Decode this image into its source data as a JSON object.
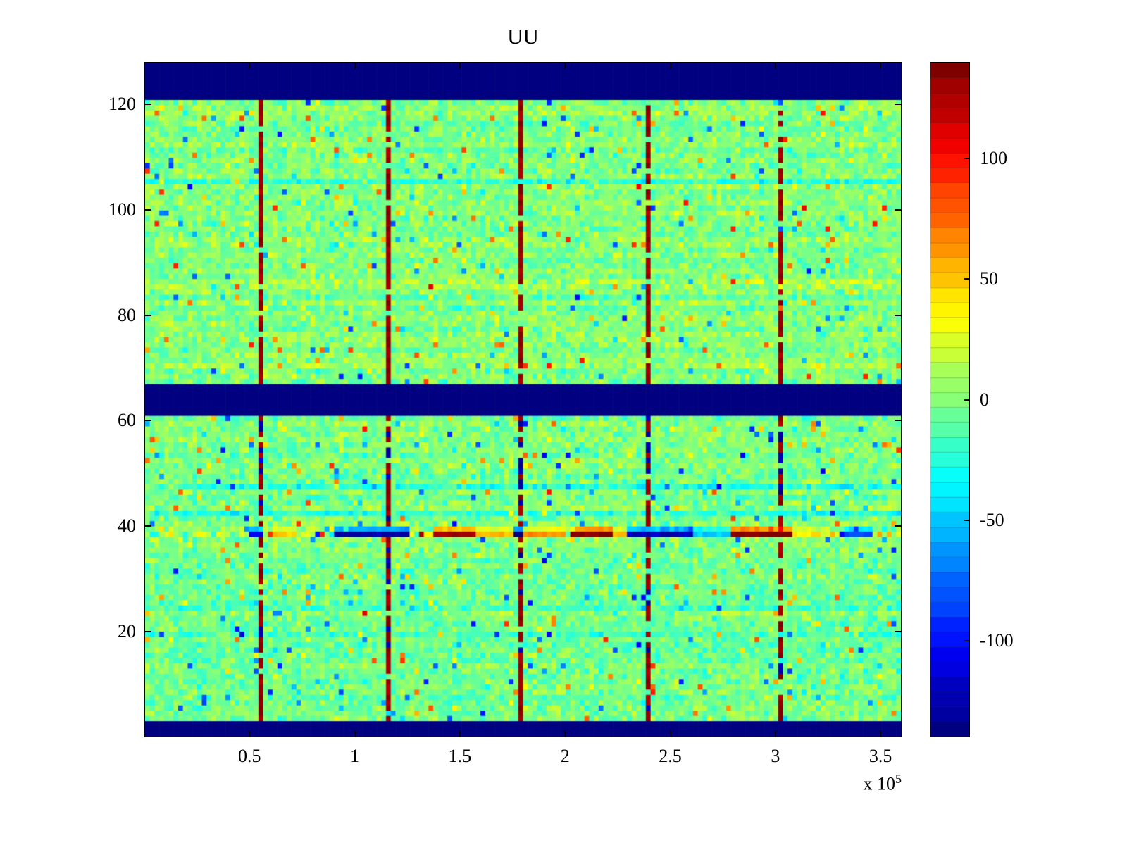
{
  "chart_data": {
    "type": "heatmap",
    "title": "UU",
    "xlabel": "",
    "ylabel": "",
    "x_range": [
      0,
      360000
    ],
    "y_range": [
      0,
      128
    ],
    "x_ticks": [
      50000,
      100000,
      150000,
      200000,
      250000,
      300000,
      350000
    ],
    "x_tick_labels": [
      "0.5",
      "1",
      "1.5",
      "2",
      "2.5",
      "3",
      "3.5"
    ],
    "x_exponent": {
      "base": "x 10",
      "exp": "5"
    },
    "y_ticks": [
      20,
      40,
      60,
      80,
      100,
      120
    ],
    "y_tick_labels": [
      "20",
      "40",
      "60",
      "80",
      "100",
      "120"
    ],
    "grid": {
      "nx": 160,
      "ny": 128,
      "seed": 1337
    },
    "colormap": "jet",
    "value_range": [
      -140,
      140
    ],
    "noise": {
      "base_amp": 26,
      "speckle_prob": 0.06,
      "speckle_amp": 90,
      "row_bias_amp": 6,
      "row_bias_strong_prob": 0.05,
      "row_bias_strong_amp": 22,
      "lower_section_bias": -2
    },
    "blue_bands_rows": [
      [
        0,
        2
      ],
      [
        61,
        66
      ],
      [
        121,
        127
      ]
    ],
    "band_value": -140,
    "streaks": {
      "x_positions": [
        53000,
        115000,
        177000,
        239000,
        301000
      ],
      "upper_section_min_row": 67,
      "upper_prob": 0.85,
      "lower_prob": 0.8,
      "lower_blue_prob_high_rows": 0.6,
      "lower_blue_prob_low_rows": 0.12,
      "blue_zone_start_row": 50,
      "red_value": 124,
      "red_jitter": 16,
      "blue_value": -118,
      "blue_jitter": 20
    },
    "anomaly": {
      "rows": [
        38,
        39
      ],
      "intensities": [
        1.0,
        0.45
      ],
      "default_amp": 60,
      "default_bias": 15,
      "strong_prob": 0.1,
      "strong_amp": 110,
      "segments": [
        [
          50000,
          57000,
          -105
        ],
        [
          60000,
          73000,
          48
        ],
        [
          90000,
          127000,
          -125
        ],
        [
          138000,
          157000,
          126
        ],
        [
          157000,
          176000,
          52
        ],
        [
          176500,
          180500,
          -130
        ],
        [
          181000,
          200000,
          65
        ],
        [
          202000,
          222000,
          136
        ],
        [
          222000,
          230000,
          55
        ],
        [
          230000,
          262000,
          -122
        ],
        [
          262000,
          278000,
          -48
        ],
        [
          278000,
          308000,
          136
        ],
        [
          308000,
          320000,
          40
        ],
        [
          333000,
          346000,
          -85
        ]
      ]
    },
    "colorbar": {
      "min": -140,
      "max": 140,
      "ticks": [
        -100,
        -50,
        0,
        50,
        100
      ],
      "tick_labels": [
        "-100",
        "-50",
        "0",
        "50",
        "100"
      ],
      "segments": 45,
      "legend_position": "right"
    },
    "grid_lines": "off",
    "axis_box": "on"
  }
}
